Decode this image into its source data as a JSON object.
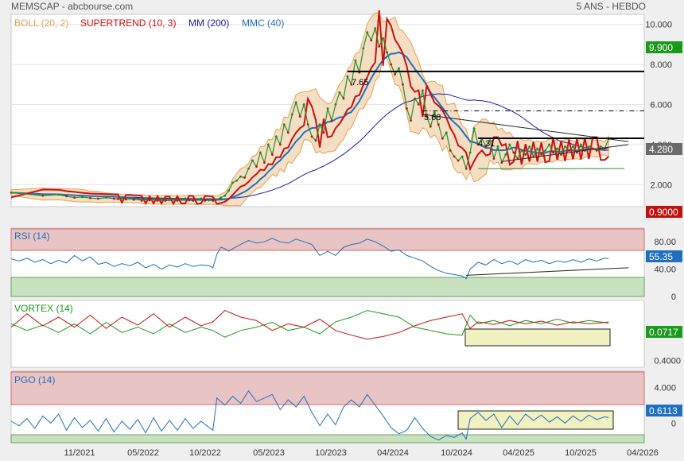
{
  "header": {
    "source": "MEMSCAP - abcbourse.com",
    "period": "5 ANS - HEBDO"
  },
  "indicators_main": [
    {
      "label": "BOLL (20, 2)",
      "color": "#e8a050"
    },
    {
      "label": "SUPERTREND (10, 3)",
      "color": "#cc1010"
    },
    {
      "label": "MM (200)",
      "color": "#1a1ab0"
    },
    {
      "label": "MMC (40)",
      "color": "#1f6fc0"
    }
  ],
  "panels": {
    "rsi": {
      "label": "RSI (14)"
    },
    "vortex": {
      "label": "VORTEX (14)"
    },
    "pgo": {
      "label": "PGO (14)"
    }
  },
  "value_tags": {
    "main_top": {
      "value": "9.900",
      "color": "#1a9a1a"
    },
    "main_price": {
      "value": "4.280",
      "color": "#6a6a6a"
    },
    "main_bottom": {
      "value": "0.9000",
      "color": "#c01010"
    },
    "rsi": {
      "value": "55.35",
      "color": "#1f6fc0"
    },
    "vortex": {
      "value": "0.0717",
      "color": "#1a9a1a"
    },
    "pgo": {
      "value": "0.6113",
      "color": "#1f6fc0"
    }
  },
  "annotations": [
    "7.65",
    "5.68",
    "4.31"
  ],
  "chart_data": [
    {
      "type": "line",
      "title": "MEMSCAP",
      "ylim": [
        0.9,
        10.5
      ],
      "y_ticks": [
        2.0,
        4.0,
        6.0,
        8.0,
        10.0
      ],
      "y_tick_labels": [
        "2.000",
        "4.000",
        "6.000",
        "8.000",
        "10.000"
      ],
      "x_tick_labels": [
        "11/2021",
        "05/2022",
        "10/2022",
        "05/2023",
        "10/2023",
        "04/2024",
        "10/2024",
        "04/2025",
        "10/2025",
        "04/2026"
      ],
      "horizontal_levels": [
        7.65,
        5.68,
        4.31
      ],
      "series": [
        {
          "name": "MEMSCAP",
          "x": [
            0,
            40,
            60,
            70,
            80,
            90,
            100,
            110,
            120,
            130,
            135,
            140,
            145,
            150,
            155,
            160,
            165,
            170,
            175,
            180,
            185,
            190,
            195,
            200,
            205,
            210,
            215,
            220,
            225,
            230,
            235,
            240,
            245,
            250,
            255,
            260,
            265,
            270,
            275,
            280,
            285,
            290,
            295,
            300,
            305,
            310,
            315,
            320,
            325,
            330,
            335,
            340,
            345,
            350,
            355,
            360,
            365,
            370,
            375,
            380,
            385,
            390,
            395,
            400,
            405,
            410,
            415,
            420,
            425,
            430,
            435,
            440,
            445,
            450,
            455,
            460,
            465,
            470,
            475,
            480,
            485,
            490,
            495,
            500,
            505,
            510,
            515,
            520,
            525,
            530,
            535,
            540,
            545,
            550,
            555,
            560,
            565,
            570,
            575,
            580,
            585,
            590,
            595,
            600,
            605,
            610,
            615,
            620,
            625,
            630,
            635,
            640,
            645,
            650,
            655,
            660,
            665,
            670,
            675,
            680,
            685,
            690,
            695,
            700,
            705,
            710,
            715,
            720,
            725,
            730,
            735,
            740,
            745,
            750,
            755
          ],
          "y": [
            1.6,
            1.45,
            1.5,
            1.42,
            1.35,
            1.38,
            1.33,
            1.3,
            1.35,
            1.3,
            1.28,
            1.32,
            1.27,
            1.3,
            1.25,
            1.28,
            1.2,
            1.27,
            1.22,
            1.28,
            1.2,
            1.25,
            1.2,
            1.22,
            1.28,
            1.2,
            1.25,
            1.3,
            1.22,
            1.2,
            1.25,
            1.3,
            1.2,
            1.22,
            1.2,
            1.25,
            1.35,
            1.45,
            1.7,
            2.1,
            2.2,
            2.4,
            2.35,
            2.8,
            3.2,
            2.9,
            3.6,
            3.1,
            4.0,
            3.5,
            4.4,
            4.0,
            5.0,
            4.6,
            5.5,
            6.1,
            5.4,
            6.0,
            5.0,
            4.4,
            4.2,
            5.0,
            4.6,
            5.8,
            5.2,
            6.0,
            6.6,
            6.3,
            7.4,
            7.0,
            8.2,
            7.6,
            8.8,
            9.6,
            9.2,
            9.8,
            8.9,
            9.3,
            8.6,
            8.0,
            7.5,
            7.8,
            7.0,
            5.8,
            5.2,
            6.3,
            6.0,
            6.7,
            5.4,
            4.9,
            5.6,
            5.0,
            4.3,
            4.6,
            3.7,
            3.4,
            3.2,
            3.4,
            2.8,
            3.6,
            4.8,
            4.0,
            4.3,
            3.9,
            4.2,
            3.3,
            3.9,
            3.1,
            3.5,
            4.0,
            3.6,
            3.3,
            3.7,
            3.5,
            3.9,
            3.4,
            3.8,
            3.5,
            3.7,
            4.0,
            3.6,
            3.8,
            3.5,
            3.9,
            3.7,
            3.9,
            3.6,
            4.0,
            3.7,
            3.9,
            3.8,
            3.7,
            3.9,
            3.8,
            4.28
          ]
        }
      ]
    },
    {
      "type": "line",
      "title": "RSI (14)",
      "ylim": [
        0,
        100
      ],
      "y_ticks": [
        0,
        40,
        80
      ],
      "y_tick_labels": [
        "0",
        "40.00",
        "80.00"
      ],
      "series": [
        {
          "name": "RSI (14)",
          "x": [
            0,
            10,
            20,
            30,
            40,
            50,
            60,
            70,
            80,
            90,
            100,
            110,
            120,
            130,
            140,
            150,
            160,
            170,
            180,
            190,
            200,
            210,
            220,
            230,
            240,
            250,
            255,
            260,
            265,
            270,
            275,
            280,
            290,
            300,
            310,
            320,
            330,
            340,
            350,
            360,
            370,
            380,
            390,
            400,
            410,
            420,
            430,
            440,
            450,
            460,
            470,
            480,
            490,
            500,
            510,
            520,
            530,
            540,
            550,
            560,
            570,
            575,
            580,
            590,
            600,
            610,
            620,
            630,
            640,
            650,
            660,
            670,
            680,
            690,
            700,
            710,
            720,
            730,
            740,
            750,
            755
          ],
          "y": [
            55,
            52,
            56,
            50,
            54,
            48,
            53,
            49,
            60,
            52,
            58,
            47,
            50,
            44,
            48,
            45,
            50,
            42,
            47,
            40,
            46,
            43,
            48,
            44,
            46,
            45,
            42,
            62,
            72,
            70,
            66,
            70,
            76,
            82,
            78,
            80,
            85,
            80,
            78,
            84,
            80,
            76,
            60,
            66,
            60,
            72,
            76,
            78,
            84,
            80,
            74,
            66,
            68,
            60,
            56,
            52,
            44,
            38,
            34,
            32,
            30,
            26,
            40,
            50,
            46,
            54,
            48,
            52,
            47,
            54,
            50,
            53,
            48,
            52,
            50,
            54,
            50,
            55,
            52,
            56,
            55.35
          ]
        }
      ]
    },
    {
      "type": "line",
      "title": "VORTEX (14)",
      "y_ticks": [
        0.4
      ],
      "y_tick_labels": [
        "0.4000"
      ],
      "series": [
        {
          "name": "VI+",
          "x": [
            0,
            20,
            40,
            60,
            80,
            100,
            120,
            140,
            160,
            180,
            200,
            220,
            240,
            255,
            270,
            290,
            310,
            330,
            350,
            370,
            390,
            410,
            430,
            450,
            470,
            490,
            510,
            530,
            550,
            570,
            580,
            590,
            610,
            630,
            650,
            670,
            690,
            710,
            730,
            750,
            755
          ],
          "y": [
            0.95,
            0.85,
            0.93,
            0.82,
            0.95,
            0.8,
            0.97,
            0.82,
            0.9,
            0.8,
            0.95,
            0.82,
            0.9,
            0.85,
            0.75,
            0.85,
            0.9,
            0.97,
            0.85,
            0.9,
            0.8,
            0.98,
            1.05,
            1.15,
            1.1,
            1.05,
            0.9,
            0.85,
            0.8,
            0.78,
            1.08,
            0.95,
            1.0,
            0.92,
            1.0,
            0.95,
            1.02,
            0.96,
            1.0,
            0.97,
            0.98
          ]
        },
        {
          "name": "VI-",
          "x": [
            0,
            20,
            40,
            60,
            80,
            100,
            120,
            140,
            160,
            180,
            200,
            220,
            240,
            255,
            270,
            290,
            310,
            330,
            350,
            370,
            390,
            410,
            430,
            450,
            470,
            490,
            510,
            530,
            550,
            570,
            580,
            590,
            610,
            630,
            650,
            670,
            690,
            710,
            730,
            750,
            755
          ],
          "y": [
            0.9,
            1.1,
            0.92,
            1.05,
            0.9,
            1.08,
            0.88,
            1.05,
            0.93,
            1.1,
            0.9,
            1.05,
            0.92,
            0.98,
            1.15,
            1.05,
            1.0,
            0.85,
            0.95,
            0.9,
            1.02,
            0.85,
            0.78,
            0.72,
            0.76,
            0.82,
            0.92,
            1.0,
            1.05,
            1.1,
            0.88,
            0.98,
            0.94,
            1.0,
            0.95,
            0.99,
            0.93,
            0.98,
            0.95,
            0.97,
            0.96
          ]
        }
      ]
    },
    {
      "type": "line",
      "title": "PGO (14)",
      "y_ticks": [
        0,
        4
      ],
      "y_tick_labels": [
        "0",
        "4.000"
      ],
      "series": [
        {
          "name": "PGO (14)",
          "x": [
            0,
            10,
            20,
            30,
            40,
            50,
            60,
            70,
            80,
            90,
            100,
            110,
            120,
            130,
            140,
            150,
            160,
            170,
            180,
            190,
            200,
            210,
            220,
            230,
            240,
            250,
            255,
            260,
            270,
            280,
            290,
            300,
            310,
            320,
            330,
            340,
            350,
            360,
            370,
            380,
            390,
            400,
            410,
            420,
            430,
            440,
            450,
            460,
            470,
            480,
            490,
            500,
            510,
            520,
            530,
            540,
            550,
            560,
            570,
            575,
            580,
            590,
            600,
            610,
            620,
            630,
            640,
            650,
            660,
            670,
            680,
            690,
            700,
            710,
            720,
            730,
            740,
            750,
            755
          ],
          "y": [
            0.2,
            -0.3,
            0.5,
            -0.6,
            0.8,
            0.0,
            1.0,
            -0.8,
            0.6,
            -0.5,
            0.3,
            -0.9,
            0.5,
            -1.0,
            0.2,
            -0.7,
            0.4,
            -1.1,
            0.6,
            -0.9,
            0.3,
            -0.8,
            0.5,
            -0.6,
            0.2,
            -0.5,
            -0.8,
            2.8,
            2.0,
            3.0,
            2.2,
            3.6,
            2.4,
            2.8,
            3.2,
            1.5,
            2.6,
            1.8,
            3.0,
            1.2,
            -0.3,
            1.0,
            -0.2,
            1.8,
            2.6,
            1.8,
            3.2,
            2.0,
            0.8,
            -0.5,
            -1.2,
            -0.8,
            0.6,
            -0.6,
            -1.5,
            -1.9,
            -1.4,
            -1.6,
            -1.1,
            -1.8,
            0.5,
            1.2,
            0.3,
            1.0,
            -0.5,
            0.8,
            -0.2,
            1.0,
            0.3,
            0.9,
            0.1,
            0.7,
            0.0,
            0.8,
            0.2,
            0.9,
            0.4,
            0.7,
            0.6113
          ]
        }
      ]
    }
  ]
}
